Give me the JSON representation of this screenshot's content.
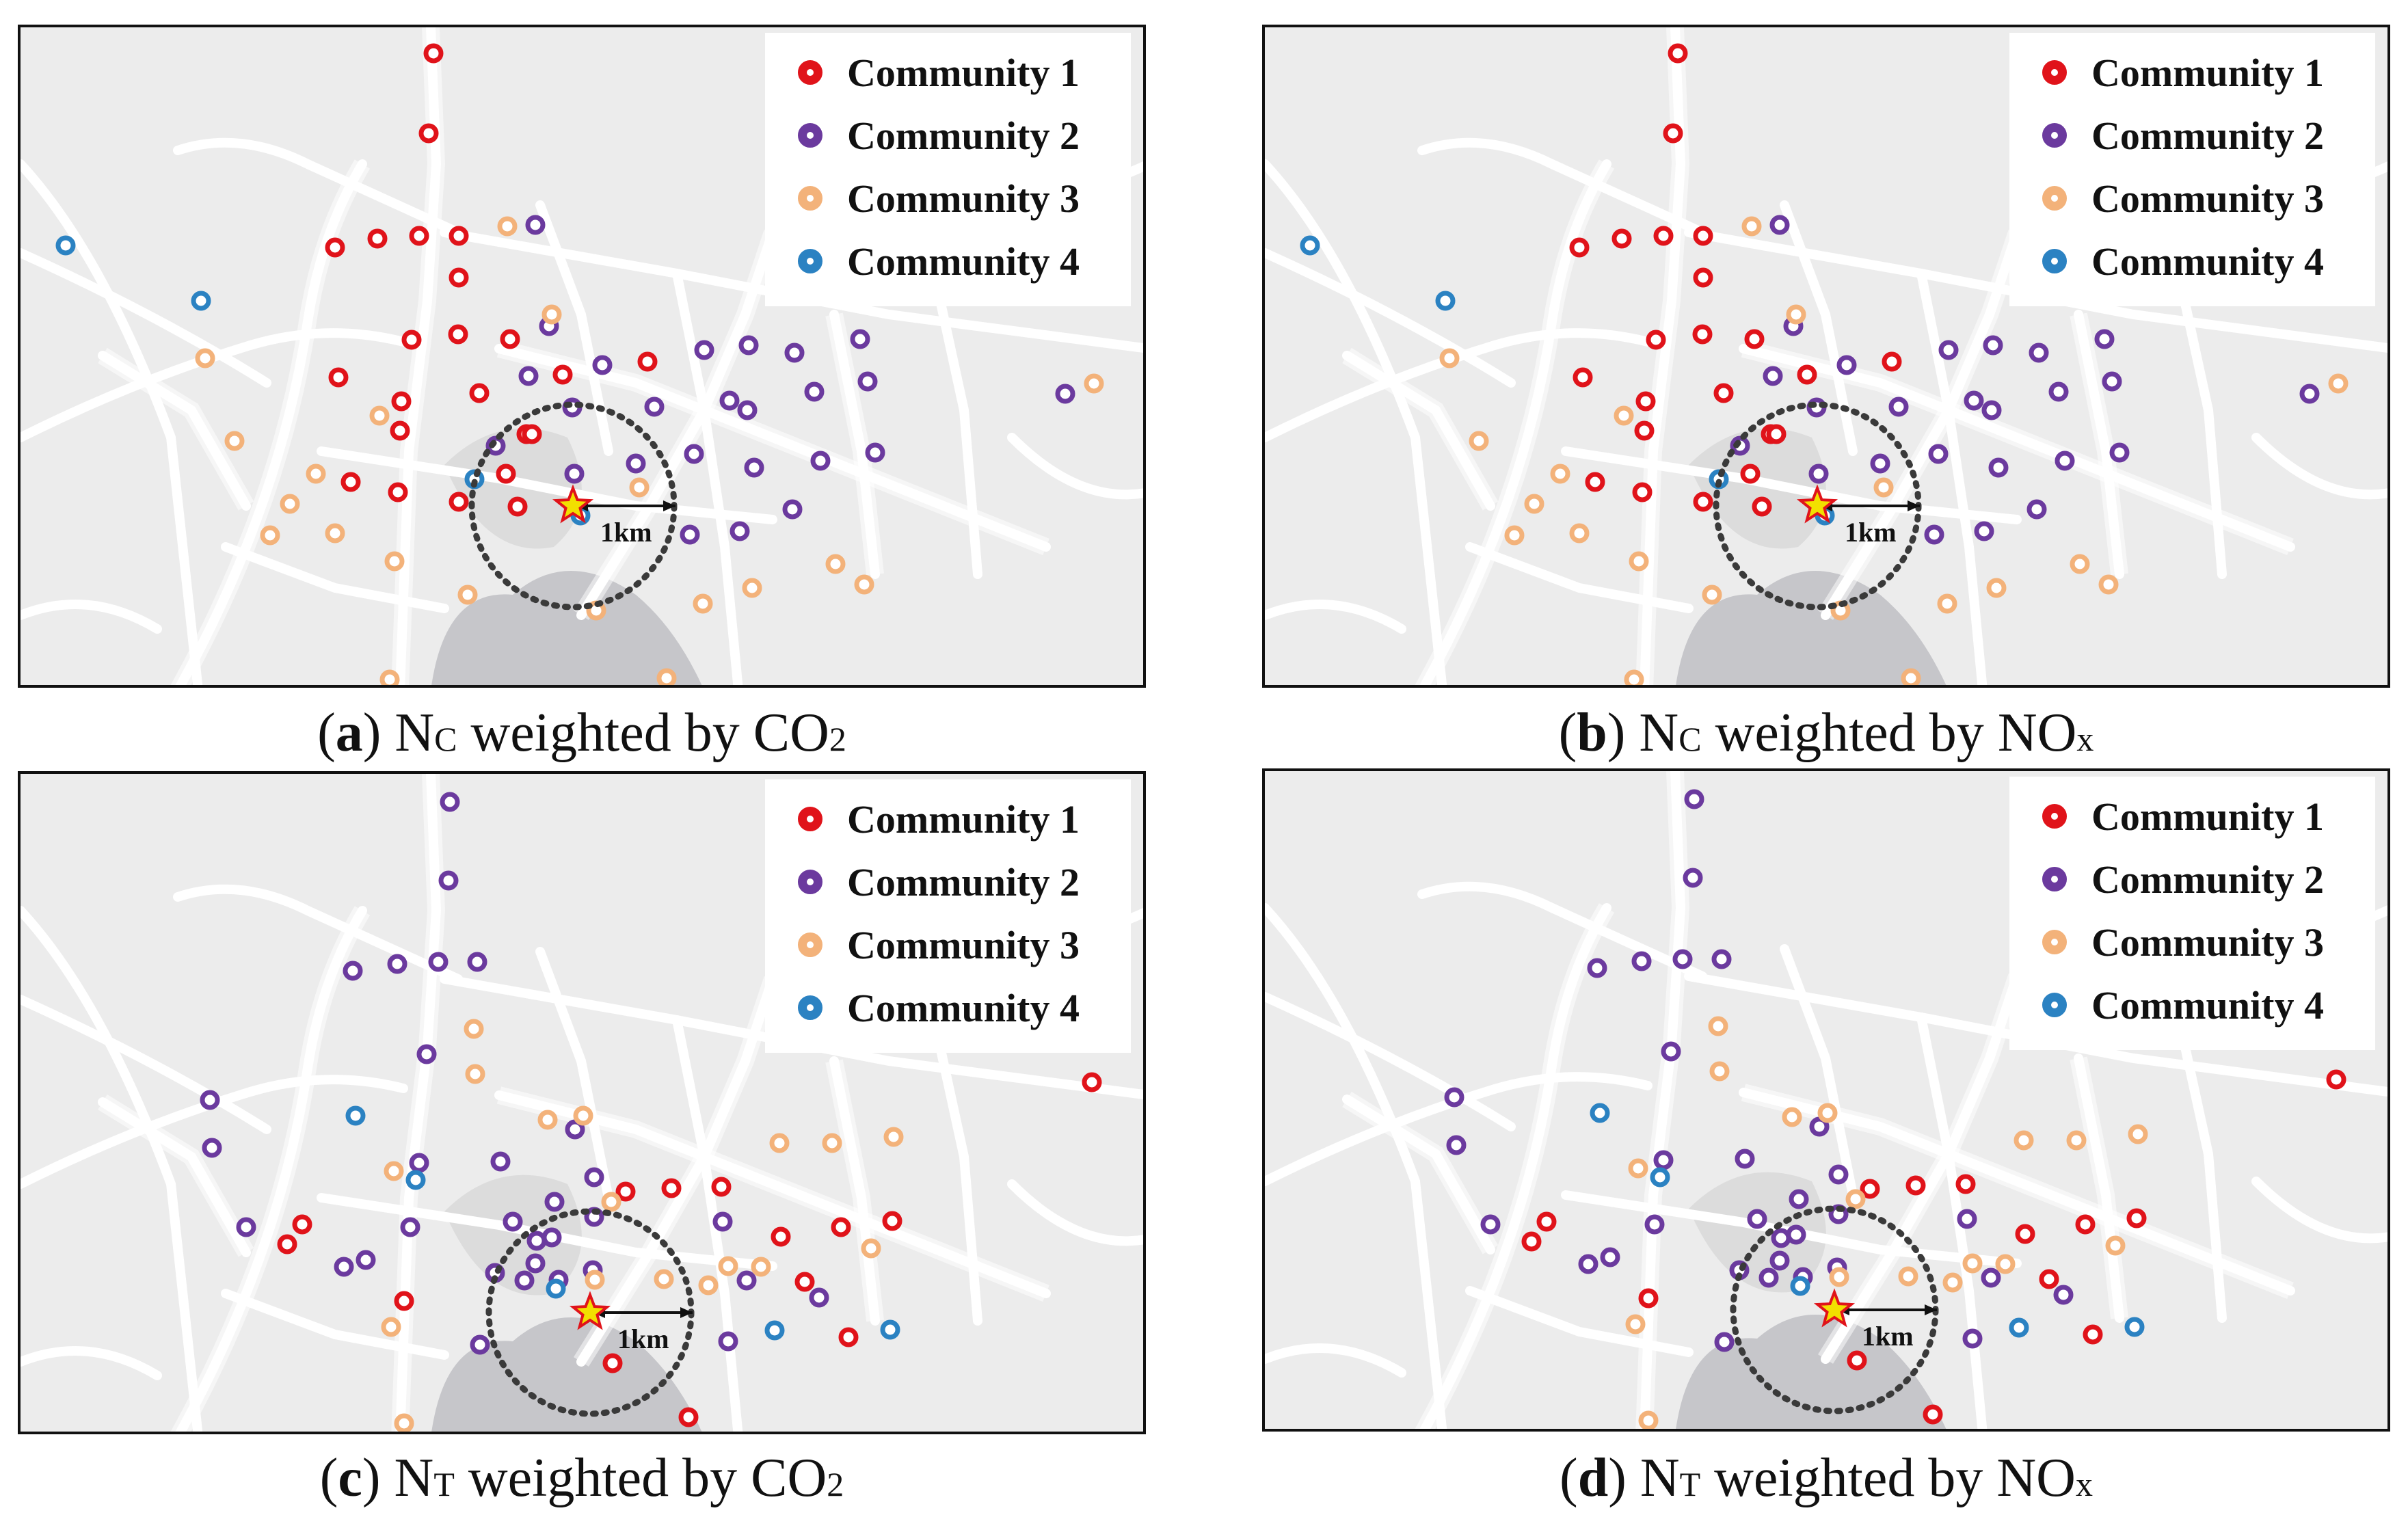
{
  "colors": {
    "community_1": "#e0131a",
    "community_2": "#6b3a9e",
    "community_3": "#f3b27a",
    "community_4": "#2b82c2",
    "star_fill": "#f2e000",
    "star_stroke": "#e0131a",
    "map_bg": "#ececec",
    "road": "#ffffff",
    "water": "#c6c6ca"
  },
  "legend": {
    "items": [
      "Community 1",
      "Community 2",
      "Community 3",
      "Community 4"
    ]
  },
  "scale_label": "1km",
  "panels": [
    {
      "letter": "a",
      "metric": "N",
      "metric_sub": "C",
      "text": " weighted by ",
      "pollutant": "CO",
      "pollutant_sub": "2"
    },
    {
      "letter": "b",
      "metric": "N",
      "metric_sub": "C",
      "text": " weighted by ",
      "pollutant": "NO",
      "pollutant_sub": "x"
    },
    {
      "letter": "c",
      "metric": "N",
      "metric_sub": "T",
      "text": " weighted by ",
      "pollutant": "CO",
      "pollutant_sub": "2"
    },
    {
      "letter": "d",
      "metric": "N",
      "metric_sub": "T",
      "text": " weighted by ",
      "pollutant": "NO",
      "pollutant_sub": "x"
    }
  ]
}
